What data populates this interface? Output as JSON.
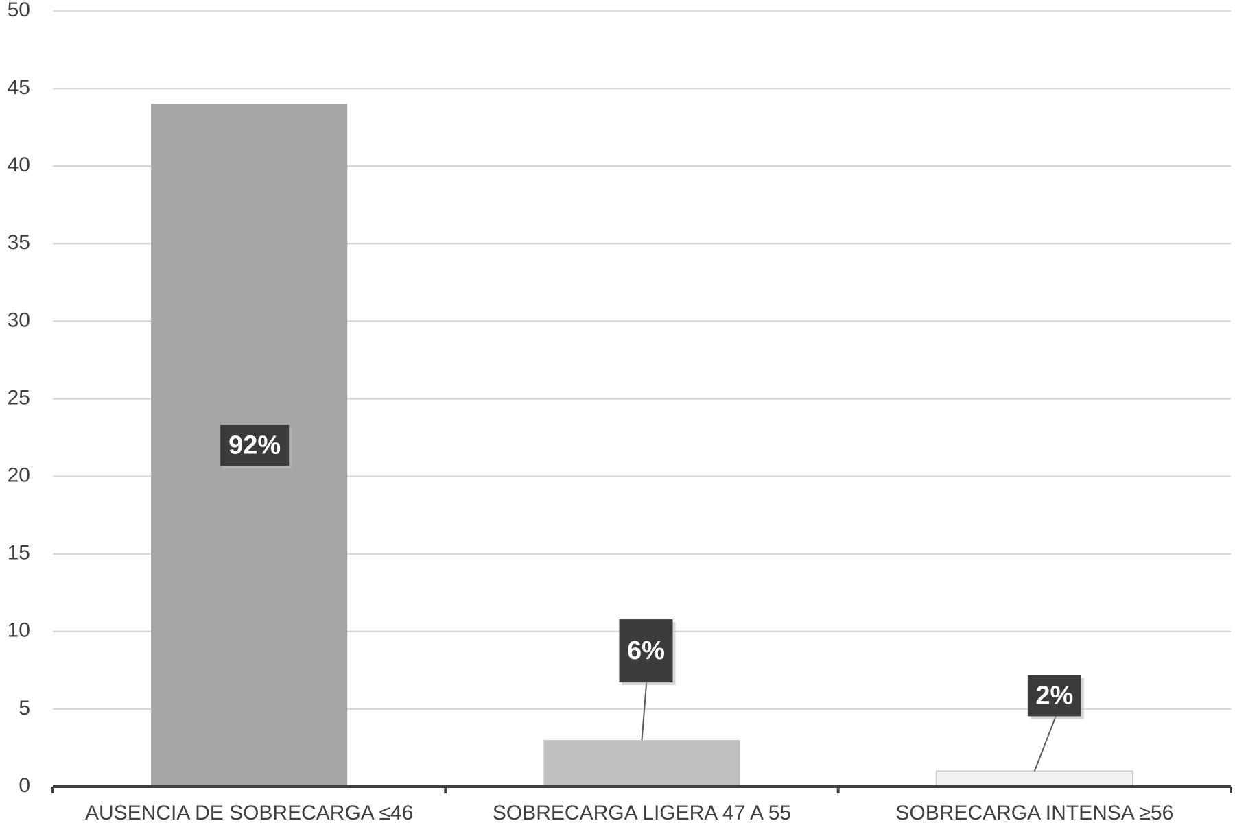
{
  "chart_data": {
    "type": "bar",
    "categories": [
      "AUSENCIA DE SOBRECARGA ≤46",
      "SOBRECARGA LIGERA 47 A 55",
      "SOBRECARGA INTENSA ≥56"
    ],
    "values": [
      44,
      3,
      1
    ],
    "colors": [
      "#a6a6a6",
      "#bfbfbf",
      "#f2f2f2"
    ],
    "percent_labels": [
      {
        "value": 92,
        "label": "92%"
      },
      {
        "value": 6,
        "label": "6%"
      },
      {
        "value": 2,
        "label": "2%"
      }
    ],
    "ylim": [
      0,
      50
    ],
    "yticks": [
      0,
      5,
      10,
      15,
      20,
      25,
      30,
      35,
      40,
      45,
      50
    ],
    "grid": true
  }
}
